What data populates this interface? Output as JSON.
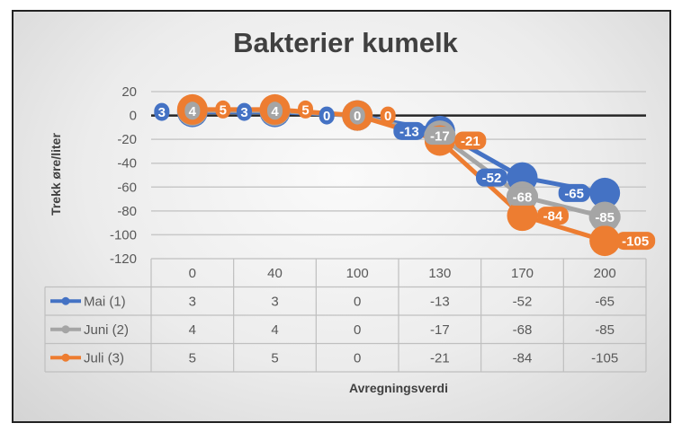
{
  "chart_data": {
    "type": "line",
    "title": "Bakterier kumelk",
    "xlabel": "Avregningsverdi",
    "ylabel": "Trekk øre/liter",
    "categories": [
      "0",
      "40",
      "100",
      "130",
      "170",
      "200"
    ],
    "ylim": [
      -120,
      20
    ],
    "yticks": [
      20,
      0,
      -20,
      -40,
      -60,
      -80,
      -100,
      -120
    ],
    "grid": true,
    "legend": "data-table",
    "data_labels": true,
    "series": [
      {
        "name": "Mai (1)",
        "color": "#4472c4",
        "values": [
          3,
          3,
          0,
          -13,
          -52,
          -65
        ]
      },
      {
        "name": "Juni (2)",
        "color": "#a5a5a5",
        "values": [
          4,
          4,
          0,
          -17,
          -68,
          -85
        ]
      },
      {
        "name": "Juli (3)",
        "color": "#ed7d31",
        "values": [
          5,
          5,
          0,
          -21,
          -84,
          -105
        ]
      }
    ]
  }
}
